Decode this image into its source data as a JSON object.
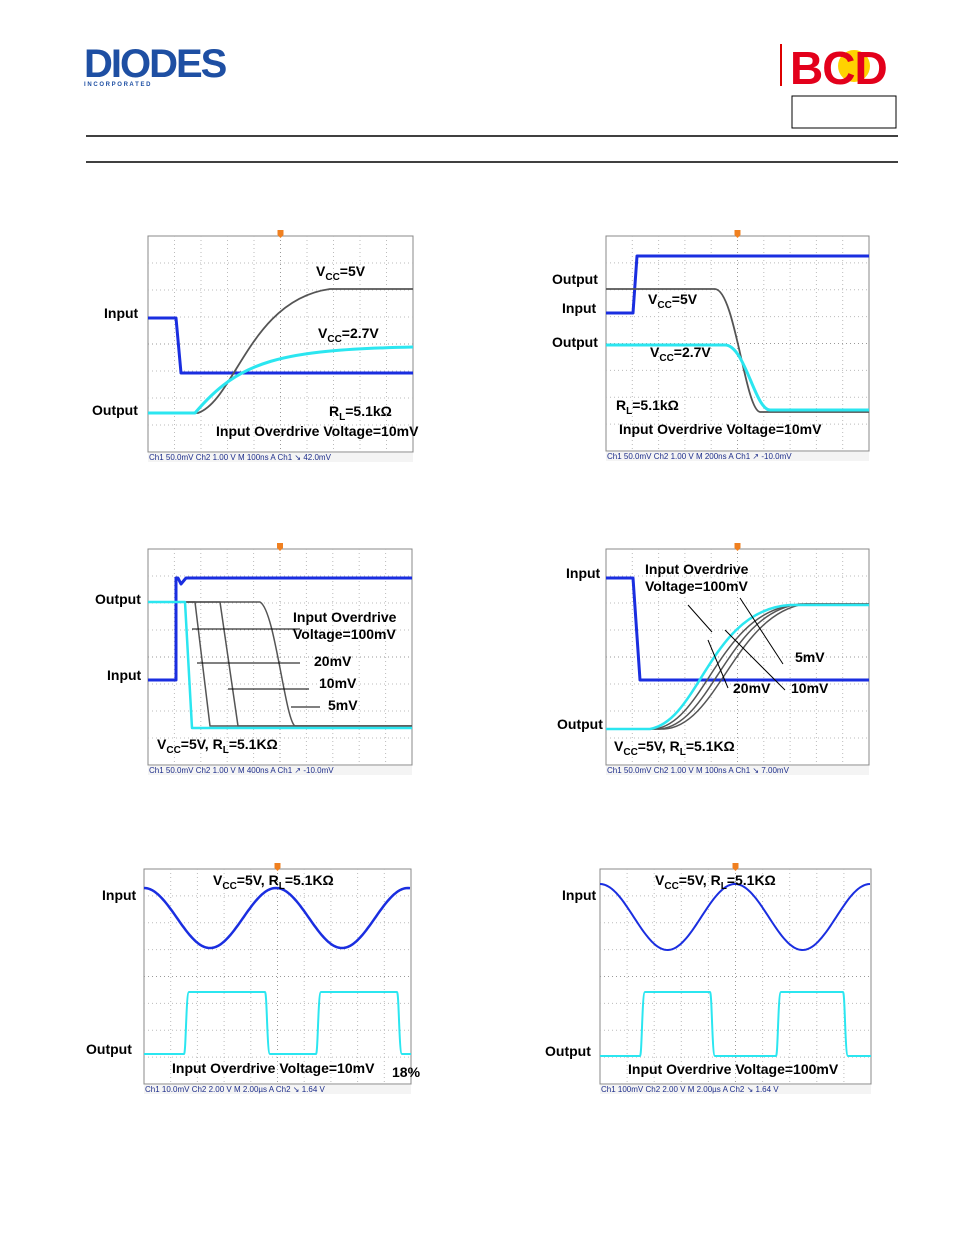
{
  "header": {
    "logo_left": "DIODES",
    "logo_left_sub": "I N C O R P O R A T E D",
    "logo_right": "BCD"
  },
  "scopes": [
    {
      "labels": [
        "Input",
        "Output",
        [
          "V",
          "CC",
          "=5V"
        ],
        [
          "V",
          "CC",
          "=2.7V"
        ],
        [
          "R",
          "L",
          "=5.1kΩ"
        ],
        "Input Overdrive Voltage=10mV"
      ],
      "status": "Ch1  50.0mV   Ch2   1.00 V   M 100ns   A  Ch1  ↘  42.0mV"
    },
    {
      "labels": [
        "Output",
        "Input",
        "Output",
        [
          "V",
          "CC",
          "=5V"
        ],
        [
          "V",
          "CC",
          "=2.7V"
        ],
        [
          "R",
          "L",
          "=5.1kΩ"
        ],
        "Input Overdrive Voltage=10mV"
      ],
      "status": "Ch1  50.0mV   Ch2   1.00 V   M 200ns   A  Ch1  ↗ -10.0mV"
    },
    {
      "labels": [
        "Output",
        "Input",
        "Input Overdrive",
        "Voltage=100mV",
        "20mV",
        "10mV",
        "5mV",
        [
          "V",
          "CC",
          "=5V, R",
          "L",
          "=5.1KΩ"
        ]
      ],
      "status": "Ch1  50.0mV   Ch2   1.00 V   M 400ns   A  Ch1  ↗ -10.0mV"
    },
    {
      "labels": [
        "Input",
        "Input Overdrive",
        "Voltage=100mV",
        "5mV",
        "20mV",
        "10mV",
        "Output",
        [
          "V",
          "CC",
          "=5V, R",
          "L",
          "=5.1KΩ"
        ]
      ],
      "status": "Ch1  50.0mV   Ch2   1.00 V   M 100ns   A  Ch1  ↘  7.00mV"
    },
    {
      "labels": [
        "Input",
        [
          "V",
          "CC",
          "=5V, R",
          "L",
          "=5.1KΩ"
        ],
        "Output",
        "Input Overdrive Voltage=10mV",
        "18%"
      ],
      "status": "Ch1  10.0mV   Ch2   2.00 V   M 2.00µs   A  Ch2  ↘  1.64 V"
    },
    {
      "labels": [
        "Input",
        [
          "V",
          "CC",
          "=5V, R",
          "L",
          "=5.1KΩ"
        ],
        "Output",
        "Input Overdrive Voltage=100mV"
      ],
      "status": "Ch1  100mV   Ch2   2.00 V   M 2.00µs   A  Ch2  ↘  1.64 V"
    }
  ]
}
